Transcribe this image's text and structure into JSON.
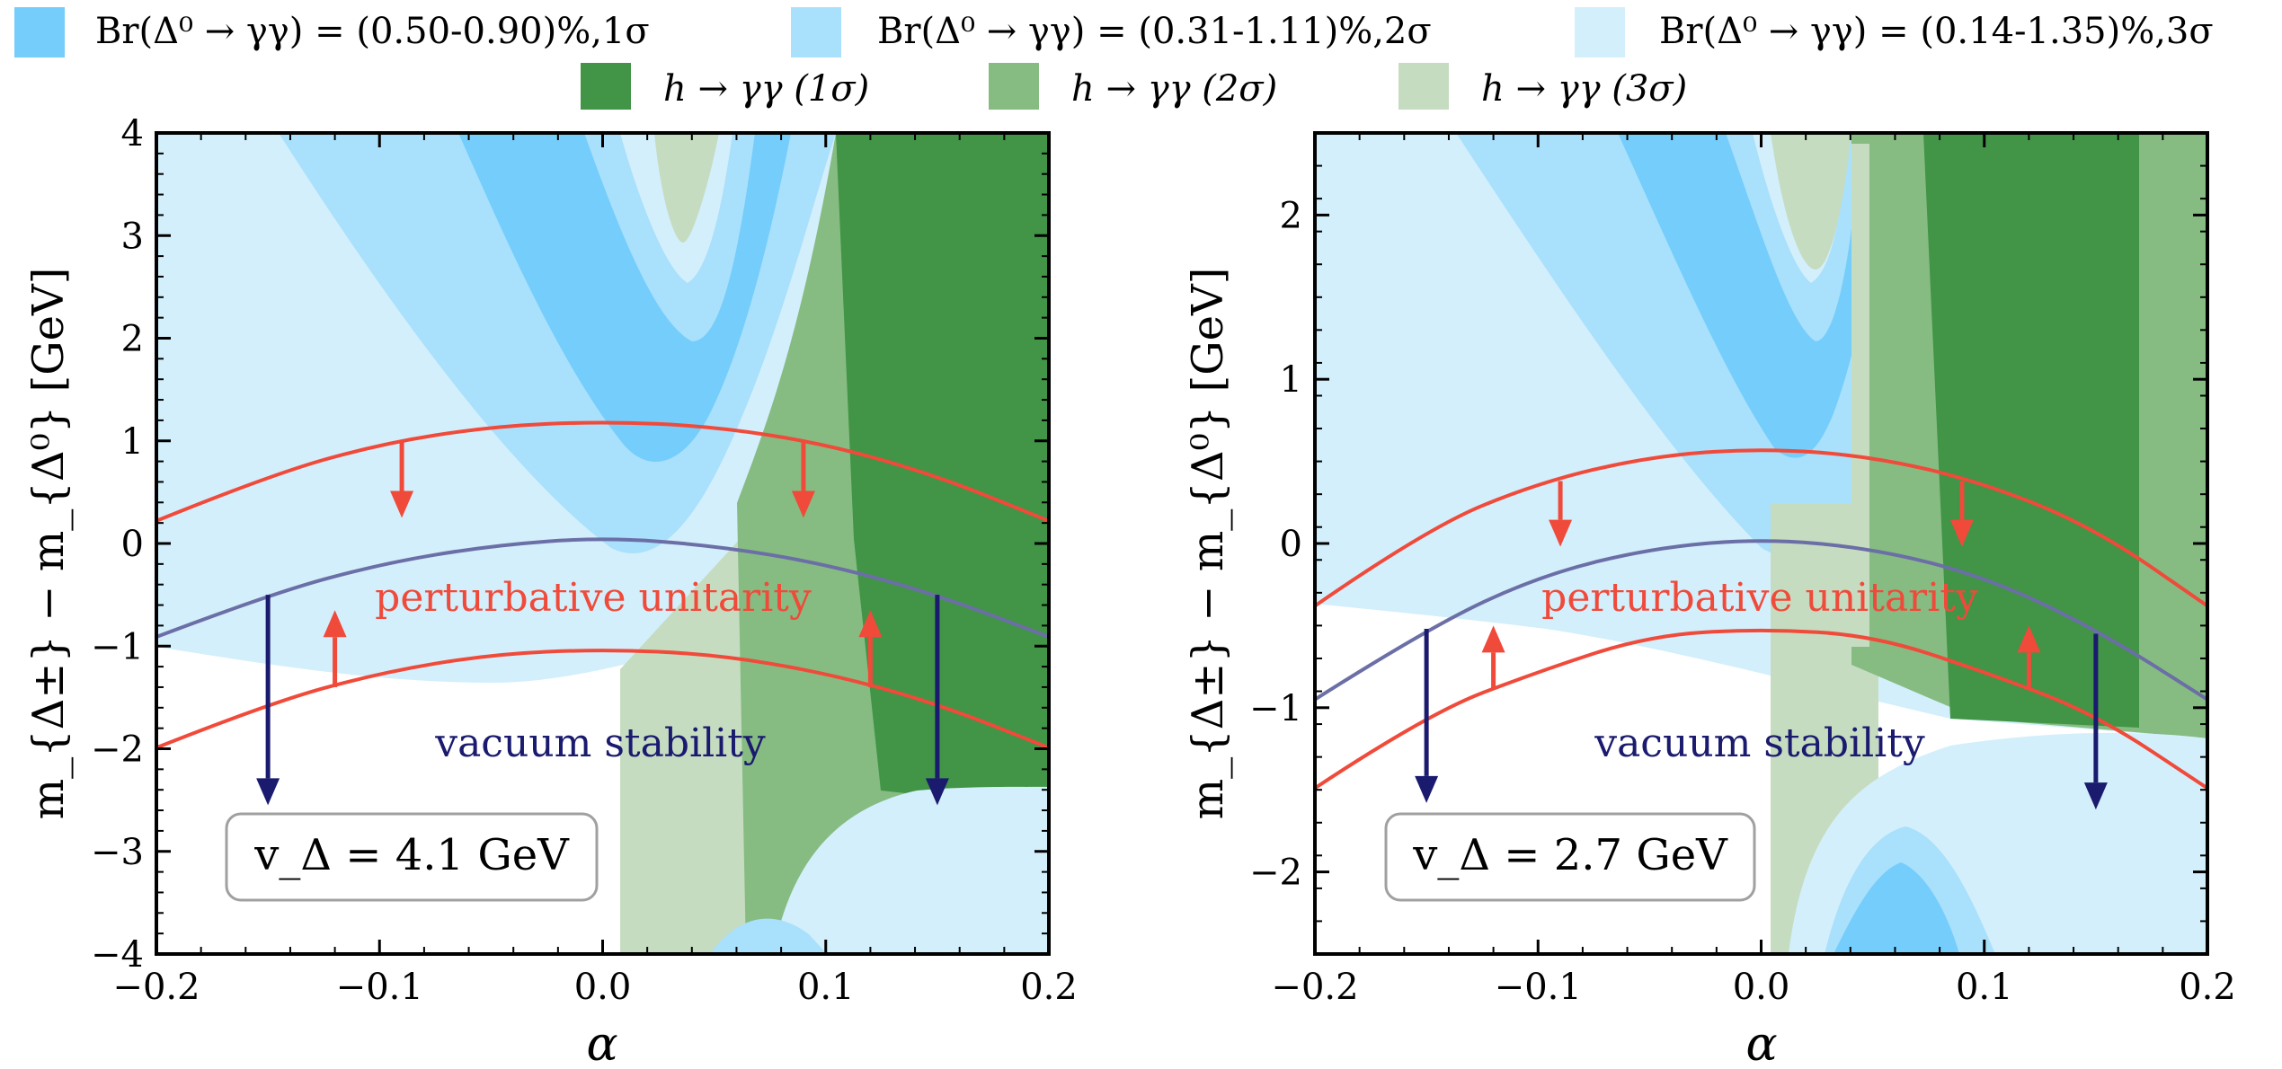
{
  "legend": {
    "row1": [
      {
        "label": "Br(Δ⁰ → γγ) = (0.50-0.90)%,1σ",
        "color": "#74cdfb"
      },
      {
        "label": "Br(Δ⁰ → γγ) = (0.31-1.11)%,2σ",
        "color": "#a9e0fc"
      },
      {
        "label": "Br(Δ⁰ → γγ) = (0.14-1.35)%,3σ",
        "color": "#d3effc"
      }
    ],
    "row2": [
      {
        "label": "h → γγ (1σ)",
        "color": "#429446"
      },
      {
        "label": "h → γγ (2σ)",
        "color": "#86bc82"
      },
      {
        "label": "h → γγ (3σ)",
        "color": "#c6dcc1"
      }
    ]
  },
  "colors": {
    "perturbative": "#f04a3a",
    "vacuum": "#6b6fa6",
    "vacuum_arrow": "#1a1a6e",
    "box_border": "#a0a0a0"
  },
  "chart_data": [
    {
      "type": "area",
      "xlabel": "α",
      "ylabel": "m_{Δ±} − m_{Δ⁰} [GeV]",
      "xlim": [
        -0.2,
        0.2
      ],
      "ylim": [
        -4,
        4
      ],
      "xticks": [
        -0.2,
        -0.1,
        0.0,
        0.1,
        0.2
      ],
      "xtick_labels": [
        "−0.2",
        "−0.1",
        "0.0",
        "0.1",
        "0.2"
      ],
      "yticks": [
        -4,
        -3,
        -2,
        -1,
        0,
        1,
        2,
        3,
        4
      ],
      "ytick_labels": [
        "−4",
        "−3",
        "−2",
        "−1",
        "0",
        "1",
        "2",
        "3",
        "4"
      ],
      "box_label": "v_Δ = 4.1 GeV",
      "annotations": {
        "perturbative": "perturbative unitarity",
        "vacuum": "vacuum stability"
      },
      "series": [
        {
          "name": "perturbative unitarity (upper)",
          "x": [
            -0.2,
            -0.15,
            -0.1,
            -0.05,
            0.0,
            0.05,
            0.1,
            0.15,
            0.2
          ],
          "y": [
            0.22,
            0.66,
            0.97,
            1.14,
            1.19,
            1.14,
            0.97,
            0.66,
            0.22
          ]
        },
        {
          "name": "perturbative unitarity (lower)",
          "x": [
            -0.2,
            -0.15,
            -0.1,
            -0.05,
            0.0,
            0.05,
            0.1,
            0.15,
            0.2
          ],
          "y": [
            -1.99,
            -1.56,
            -1.26,
            -1.08,
            -1.03,
            -1.08,
            -1.26,
            -1.56,
            -1.99
          ]
        },
        {
          "name": "vacuum stability",
          "x": [
            -0.2,
            -0.15,
            -0.1,
            -0.05,
            0.0,
            0.05,
            0.1,
            0.15,
            0.2
          ],
          "y": [
            -0.91,
            -0.5,
            -0.2,
            -0.02,
            0.06,
            -0.02,
            -0.2,
            -0.5,
            -0.91
          ]
        }
      ],
      "arrows": [
        {
          "type": "perturbative",
          "x": -0.09,
          "from": 1.0,
          "to": 0.25
        },
        {
          "type": "perturbative",
          "x": 0.09,
          "from": 1.0,
          "to": 0.25
        },
        {
          "type": "perturbative",
          "x": -0.12,
          "from": -1.4,
          "to": -0.65
        },
        {
          "type": "perturbative",
          "x": 0.12,
          "from": -1.4,
          "to": -0.65
        },
        {
          "type": "vacuum",
          "x": -0.15,
          "from": -0.5,
          "to": -2.55
        },
        {
          "type": "vacuum",
          "x": 0.15,
          "from": -0.5,
          "to": -2.55
        }
      ]
    },
    {
      "type": "area",
      "xlabel": "α",
      "ylabel": "m_{Δ±} − m_{Δ⁰} [GeV]",
      "xlim": [
        -0.2,
        0.2
      ],
      "ylim": [
        -2.5,
        2.5
      ],
      "xticks": [
        -0.2,
        -0.1,
        0.0,
        0.1,
        0.2
      ],
      "xtick_labels": [
        "−0.2",
        "−0.1",
        "0.0",
        "0.1",
        "0.2"
      ],
      "yticks": [
        -2,
        -1,
        0,
        1,
        2
      ],
      "ytick_labels": [
        "−2",
        "−1",
        "0",
        "1",
        "2"
      ],
      "box_label": "v_Δ = 2.7 GeV",
      "annotations": {
        "perturbative": "perturbative unitarity",
        "vacuum": "vacuum stability"
      },
      "series": [
        {
          "name": "perturbative unitarity (upper)",
          "x": [
            -0.2,
            -0.15,
            -0.1,
            -0.05,
            0.0,
            0.05,
            0.1,
            0.15,
            0.2
          ],
          "y": [
            -0.38,
            0.09,
            0.37,
            0.53,
            0.58,
            0.53,
            0.37,
            0.09,
            -0.38
          ]
        },
        {
          "name": "perturbative unitarity (lower)",
          "x": [
            -0.2,
            -0.15,
            -0.1,
            -0.05,
            0.0,
            0.05,
            0.1,
            0.15,
            0.2
          ],
          "y": [
            -1.49,
            -1.04,
            -0.78,
            -0.56,
            -0.52,
            -0.56,
            -0.78,
            -1.04,
            -1.49
          ]
        },
        {
          "name": "vacuum stability",
          "x": [
            -0.2,
            -0.15,
            -0.1,
            -0.05,
            0.0,
            0.05,
            0.1,
            0.15,
            0.2
          ],
          "y": [
            -0.95,
            -0.52,
            -0.2,
            -0.03,
            0.03,
            -0.03,
            -0.2,
            -0.52,
            -0.95
          ]
        }
      ],
      "arrows": [
        {
          "type": "perturbative",
          "x": -0.09,
          "from": 0.38,
          "to": -0.02
        },
        {
          "type": "perturbative",
          "x": 0.09,
          "from": 0.38,
          "to": -0.02
        },
        {
          "type": "perturbative",
          "x": -0.12,
          "from": -0.88,
          "to": -0.5
        },
        {
          "type": "perturbative",
          "x": 0.12,
          "from": -0.88,
          "to": -0.5
        },
        {
          "type": "vacuum",
          "x": -0.15,
          "from": -0.52,
          "to": -1.58
        },
        {
          "type": "vacuum",
          "x": 0.15,
          "from": -0.55,
          "to": -1.62
        }
      ]
    }
  ]
}
